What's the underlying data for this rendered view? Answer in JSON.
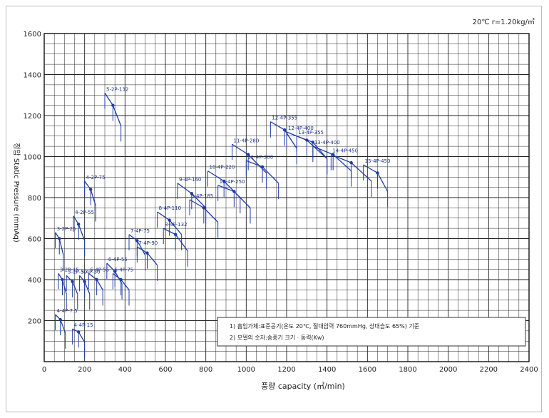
{
  "chart_data": {
    "type": "line",
    "condition": "20℃ r=1.20kg/㎥",
    "xlabel": "풍량 capacity (㎥/min)",
    "ylabel": "정압 Static Pressure (mmAq)",
    "xlim": [
      0,
      2400
    ],
    "ylim": [
      0,
      1600
    ],
    "x_ticks": [
      0,
      200,
      400,
      600,
      800,
      1000,
      1200,
      1400,
      1600,
      1800,
      2000,
      2200,
      2400
    ],
    "y_ticks": [
      200,
      400,
      600,
      800,
      1000,
      1200,
      1400,
      1600
    ],
    "x_tick_labels": [
      "0",
      "200",
      "400",
      "600",
      "800",
      "1000",
      "1200",
      "1400",
      "1600",
      "1800",
      "2000",
      "2200",
      "2400"
    ],
    "y_tick_labels": [
      "200",
      "400",
      "600",
      "800",
      "1000",
      "1200",
      "1400",
      "1600"
    ],
    "grid": true,
    "notes": [
      "1) 흡입가체:표준공기(온도 20℃, 절대압력 760mmHg, 상대습도 65%) 기준",
      "2) 모델의 숫자:송풍기 크기 · 동력(Kw)"
    ],
    "series": [
      {
        "name": "4-4P-7.5",
        "x": [
          55,
          80,
          105
        ],
        "y": [
          230,
          205,
          140
        ]
      },
      {
        "name": "4-4P-15",
        "x": [
          140,
          170,
          200
        ],
        "y": [
          160,
          145,
          95
        ]
      },
      {
        "name": "3-2P-15",
        "x": [
          70,
          90,
          110
        ],
        "y": [
          430,
          400,
          330
        ]
      },
      {
        "name": "3-2P-25",
        "x": [
          55,
          75,
          95
        ],
        "y": [
          630,
          600,
          520
        ]
      },
      {
        "name": "3-2P-30",
        "x": [
          110,
          140,
          165
        ],
        "y": [
          420,
          390,
          330
        ]
      },
      {
        "name": "4-2P-55",
        "x": [
          145,
          170,
          200
        ],
        "y": [
          710,
          670,
          590
        ]
      },
      {
        "name": "4-2P-75",
        "x": [
          200,
          230,
          255
        ],
        "y": [
          880,
          840,
          760
        ]
      },
      {
        "name": "5-4P-30",
        "x": [
          175,
          200,
          225
        ],
        "y": [
          420,
          390,
          330
        ]
      },
      {
        "name": "5-4P-55",
        "x": [
          220,
          260,
          290
        ],
        "y": [
          430,
          400,
          350
        ]
      },
      {
        "name": "5-2P-132",
        "x": [
          300,
          340,
          380
        ],
        "y": [
          1310,
          1250,
          1150
        ]
      },
      {
        "name": "6-4P-55",
        "x": [
          310,
          350,
          385
        ],
        "y": [
          480,
          440,
          380
        ]
      },
      {
        "name": "6-4P-75",
        "x": [
          340,
          380,
          420
        ],
        "y": [
          430,
          400,
          350
        ]
      },
      {
        "name": "7-4P-75",
        "x": [
          420,
          460,
          500
        ],
        "y": [
          620,
          590,
          520
        ]
      },
      {
        "name": "7-4P-90",
        "x": [
          460,
          510,
          560
        ],
        "y": [
          560,
          530,
          470
        ]
      },
      {
        "name": "8-4P-110",
        "x": [
          560,
          620,
          680
        ],
        "y": [
          730,
          690,
          620
        ]
      },
      {
        "name": "8-4P-132",
        "x": [
          590,
          650,
          710
        ],
        "y": [
          650,
          620,
          540
        ]
      },
      {
        "name": "9-4P-160",
        "x": [
          660,
          730,
          800
        ],
        "y": [
          870,
          820,
          750
        ]
      },
      {
        "name": "9-4P-185",
        "x": [
          720,
          790,
          860
        ],
        "y": [
          790,
          750,
          680
        ]
      },
      {
        "name": "10-4P-220",
        "x": [
          810,
          890,
          970
        ],
        "y": [
          930,
          880,
          800
        ]
      },
      {
        "name": "10-4P-250",
        "x": [
          860,
          940,
          1020
        ],
        "y": [
          860,
          830,
          750
        ]
      },
      {
        "name": "11-4P-280",
        "x": [
          930,
          1010,
          1100
        ],
        "y": [
          1060,
          1010,
          920
        ]
      },
      {
        "name": "11-4P-300",
        "x": [
          1000,
          1080,
          1160
        ],
        "y": [
          980,
          950,
          870
        ]
      },
      {
        "name": "12-4P-355",
        "x": [
          1120,
          1190,
          1250
        ],
        "y": [
          1170,
          1130,
          1040
        ]
      },
      {
        "name": "12-4P-400",
        "x": [
          1200,
          1300,
          1400
        ],
        "y": [
          1120,
          1080,
          990
        ]
      },
      {
        "name": "13-4P-355",
        "x": [
          1250,
          1330,
          1400
        ],
        "y": [
          1100,
          1070,
          990
        ]
      },
      {
        "name": "13-4P-400",
        "x": [
          1330,
          1430,
          1520
        ],
        "y": [
          1050,
          1010,
          930
        ]
      },
      {
        "name": "14-4P-450",
        "x": [
          1420,
          1520,
          1620
        ],
        "y": [
          1010,
          970,
          880
        ]
      },
      {
        "name": "15-4P-450",
        "x": [
          1580,
          1650,
          1700
        ],
        "y": [
          960,
          920,
          830
        ]
      }
    ]
  }
}
